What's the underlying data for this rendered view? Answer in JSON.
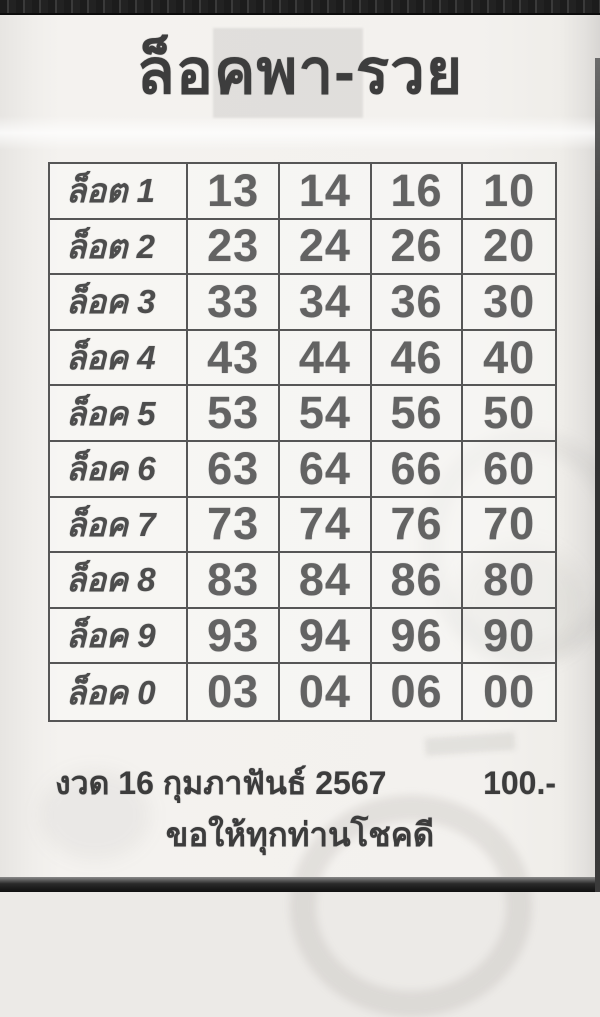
{
  "page": {
    "title": "ล็อคพา-รวย"
  },
  "table": {
    "rows": [
      {
        "label": "ล็อต 1",
        "numbers": [
          "13",
          "14",
          "16",
          "10"
        ]
      },
      {
        "label": "ล็อต 2",
        "numbers": [
          "23",
          "24",
          "26",
          "20"
        ]
      },
      {
        "label": "ล็อค 3",
        "numbers": [
          "33",
          "34",
          "36",
          "30"
        ]
      },
      {
        "label": "ล็อค 4",
        "numbers": [
          "43",
          "44",
          "46",
          "40"
        ]
      },
      {
        "label": "ล็อค 5",
        "numbers": [
          "53",
          "54",
          "56",
          "50"
        ]
      },
      {
        "label": "ล็อค 6",
        "numbers": [
          "63",
          "64",
          "66",
          "60"
        ]
      },
      {
        "label": "ล็อค 7",
        "numbers": [
          "73",
          "74",
          "76",
          "70"
        ]
      },
      {
        "label": "ล็อค 8",
        "numbers": [
          "83",
          "84",
          "86",
          "80"
        ]
      },
      {
        "label": "ล็อค 9",
        "numbers": [
          "93",
          "94",
          "96",
          "90"
        ]
      },
      {
        "label": "ล็อค 0",
        "numbers": [
          "03",
          "04",
          "06",
          "00"
        ]
      }
    ]
  },
  "footer": {
    "draw_date": "งวด 16 กุมภาฟันธ์ 2567",
    "price": "100.-",
    "blessing": "ขอให้ทุกท่านโชคดี"
  },
  "colors": {
    "paper": "#f2f0ed",
    "ink_title": "#3d3d3d",
    "ink_numbers": "#636363",
    "ink_labels": "#4d4d4d",
    "grid_line": "#565656",
    "edge_band": "#1e1e1e"
  }
}
